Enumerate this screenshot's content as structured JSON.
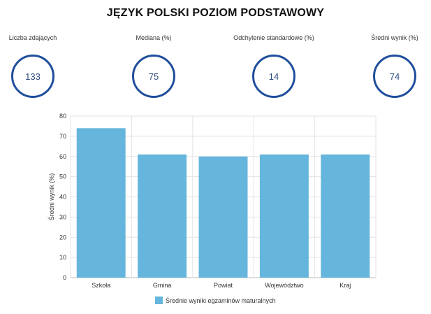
{
  "title": "JĘZYK POLSKI POZIOM PODSTAWOWY",
  "stats": [
    {
      "label": "Liczba zdających",
      "value": "133"
    },
    {
      "label": "Mediana (%)",
      "value": "75"
    },
    {
      "label": "Odchylenie standardowe (%)",
      "value": "14"
    },
    {
      "label": "Średni wynik (%)",
      "value": "74"
    }
  ],
  "colors": {
    "bar": "#65b5dc",
    "circle": "#1f4e9c",
    "grid": "#e3e3e3",
    "axis": "#bbbbbb"
  },
  "chart_data": {
    "type": "bar",
    "categories": [
      "Szkoła",
      "Gmina",
      "Powiat",
      "Województwo",
      "Kraj"
    ],
    "series": [
      {
        "name": "Średnie wyniki egzaminów maturalnych",
        "values": [
          74,
          61,
          60,
          61,
          61
        ]
      }
    ],
    "ylabel": "Średni wynik (%)",
    "xlabel": "",
    "ylim": [
      0,
      80
    ],
    "yticks": [
      0,
      10,
      20,
      30,
      40,
      50,
      60,
      70,
      80
    ],
    "grid": true,
    "legend": "bottom-center"
  }
}
